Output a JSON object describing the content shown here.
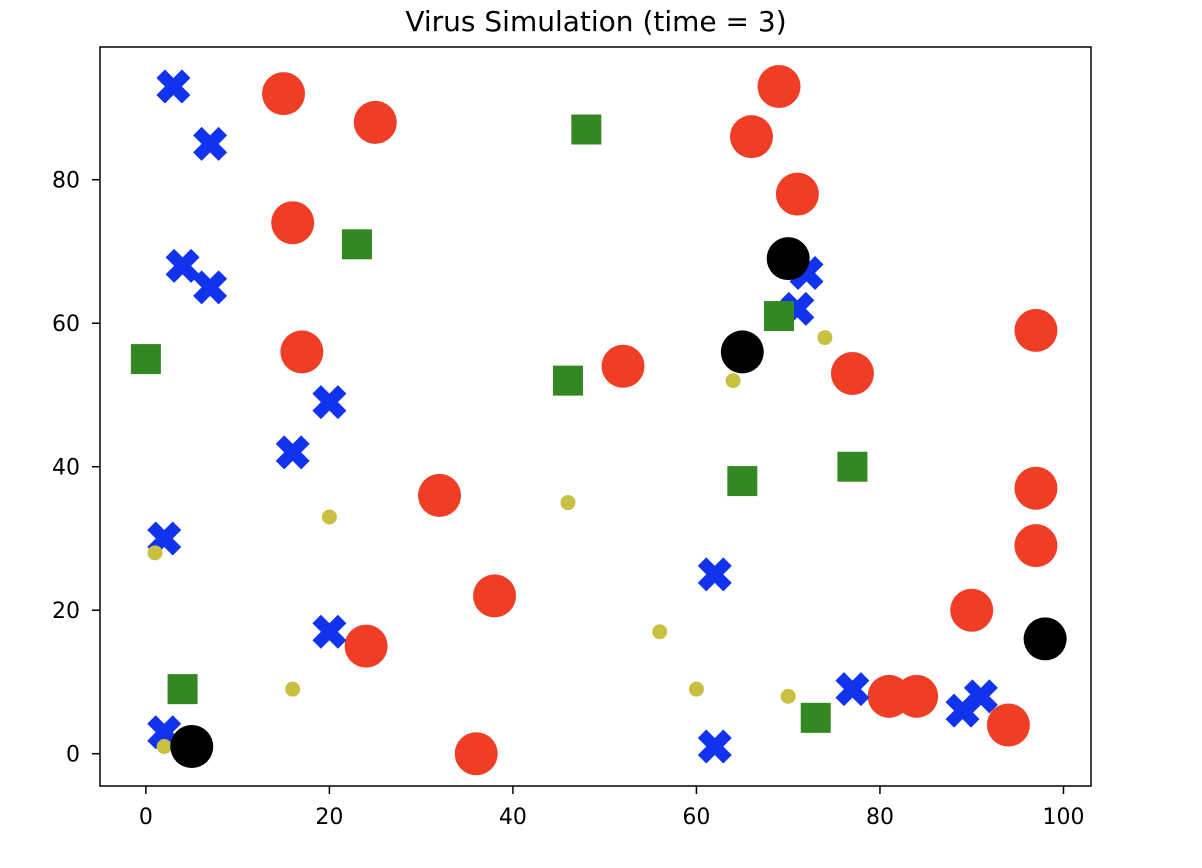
{
  "chart_data": {
    "type": "scatter",
    "title": "Virus Simulation (time = 3)",
    "xlabel": "",
    "ylabel": "",
    "xlim": [
      -5,
      103
    ],
    "ylim": [
      -4.5,
      98.5
    ],
    "x_ticks": [
      0,
      20,
      40,
      60,
      80,
      100
    ],
    "y_ticks": [
      0,
      20,
      40,
      60,
      80
    ],
    "grid": false,
    "legend": "none",
    "series": [
      {
        "marker": "circle-large",
        "color": "#f03e26",
        "points": [
          [
            15,
            92
          ],
          [
            25,
            88
          ],
          [
            16,
            74
          ],
          [
            17,
            56
          ],
          [
            32,
            36
          ],
          [
            38,
            22
          ],
          [
            24,
            15
          ],
          [
            36,
            0
          ],
          [
            52,
            54
          ],
          [
            69,
            93
          ],
          [
            66,
            86
          ],
          [
            71,
            78
          ],
          [
            77,
            53
          ],
          [
            97,
            59
          ],
          [
            97,
            37
          ],
          [
            97,
            29
          ],
          [
            90,
            20
          ],
          [
            81,
            8
          ],
          [
            84,
            8
          ],
          [
            94,
            4
          ]
        ]
      },
      {
        "marker": "x-cross",
        "color": "#1133ee",
        "points": [
          [
            3,
            93
          ],
          [
            7,
            85
          ],
          [
            4,
            68
          ],
          [
            7,
            65
          ],
          [
            20,
            49
          ],
          [
            16,
            42
          ],
          [
            2,
            30
          ],
          [
            20,
            17
          ],
          [
            2,
            3
          ],
          [
            62,
            25
          ],
          [
            62,
            1
          ],
          [
            72,
            67
          ],
          [
            71,
            62
          ],
          [
            77,
            9
          ],
          [
            89,
            6
          ],
          [
            91,
            8
          ]
        ]
      },
      {
        "marker": "square",
        "color": "#338822",
        "points": [
          [
            48,
            87
          ],
          [
            23,
            71
          ],
          [
            0,
            55
          ],
          [
            46,
            52
          ],
          [
            69,
            61
          ],
          [
            65,
            38
          ],
          [
            77,
            40
          ],
          [
            4,
            9
          ],
          [
            73,
            5
          ]
        ]
      },
      {
        "marker": "circle-small",
        "color": "#c8c040",
        "points": [
          [
            1,
            28
          ],
          [
            20,
            33
          ],
          [
            16,
            9
          ],
          [
            2,
            1
          ],
          [
            46,
            35
          ],
          [
            56,
            17
          ],
          [
            64,
            52
          ],
          [
            74,
            58
          ],
          [
            60,
            9
          ],
          [
            70,
            8
          ]
        ]
      },
      {
        "marker": "circle-black",
        "color": "#000000",
        "points": [
          [
            70,
            69
          ],
          [
            65,
            56
          ],
          [
            98,
            16
          ],
          [
            5,
            1
          ]
        ]
      }
    ]
  }
}
